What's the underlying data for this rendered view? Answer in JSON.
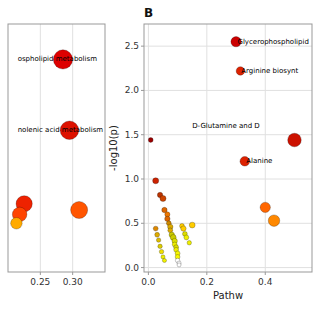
{
  "chart_data": [
    {
      "type": "scatter",
      "x": [
        0.285,
        0.295,
        0.225,
        0.218,
        0.213,
        0.31
      ],
      "values": [
        2.35,
        1.55,
        0.72,
        0.6,
        0.5,
        0.65
      ],
      "sizes": [
        280,
        260,
        200,
        160,
        100,
        220
      ],
      "colors": [
        "#dd0000",
        "#dd1100",
        "#ee2200",
        "#ff4400",
        "#ffaa00",
        "#ff5500"
      ],
      "xlim": [
        0.2,
        0.35
      ],
      "ylim": [
        -0.05,
        2.75
      ],
      "xticks": [
        {
          "value": 0.25,
          "label": "0.25"
        },
        {
          "value": 0.3,
          "label": "0.30"
        }
      ],
      "yticks": [],
      "tick_labels": "x",
      "grid": true,
      "annotations": [
        {
          "x": 0.215,
          "y": 2.35,
          "text": "ospholipid metabolism"
        },
        {
          "x": 0.215,
          "y": 1.55,
          "text": "nolenic acid metabolism"
        }
      ]
    },
    {
      "type": "scatter",
      "title": "B",
      "x_label": "Pathw",
      "y_label": "-log10(p)",
      "x": [
        0.3,
        0.315,
        0.008,
        0.5,
        0.33,
        0.4,
        0.43,
        0.025,
        0.04,
        0.05,
        0.055,
        0.065,
        0.065,
        0.07,
        0.075,
        0.075,
        0.08,
        0.085,
        0.09,
        0.09,
        0.095,
        0.095,
        0.1,
        0.1,
        0.1,
        0.105,
        0.105,
        0.115,
        0.12,
        0.125,
        0.13,
        0.14,
        0.15,
        0.025,
        0.03,
        0.035,
        0.04,
        0.045,
        0.05,
        0.055
      ],
      "values": [
        2.55,
        2.22,
        1.44,
        1.44,
        1.2,
        0.68,
        0.53,
        0.98,
        0.82,
        0.78,
        0.65,
        0.6,
        0.55,
        0.5,
        0.46,
        0.42,
        0.37,
        0.34,
        0.3,
        0.26,
        0.23,
        0.2,
        0.16,
        0.12,
        0.08,
        0.05,
        0.03,
        0.47,
        0.44,
        0.38,
        0.34,
        0.28,
        0.48,
        0.44,
        0.37,
        0.31,
        0.24,
        0.18,
        0.12,
        0.08
      ],
      "sizes": [
        80,
        55,
        18,
        140,
        70,
        80,
        100,
        28,
        22,
        28,
        22,
        20,
        22,
        18,
        22,
        18,
        22,
        26,
        22,
        18,
        18,
        18,
        18,
        18,
        15,
        13,
        12,
        18,
        22,
        18,
        18,
        15,
        26,
        18,
        18,
        15,
        15,
        15,
        13,
        13
      ],
      "colors": [
        "#cc0000",
        "#dd2200",
        "#990000",
        "#cc1100",
        "#dd2200",
        "#ff6600",
        "#ff8800",
        "#cc2200",
        "#bb3300",
        "#cc4400",
        "#dd6600",
        "#ee7700",
        "#dd6600",
        "#cc8800",
        "#ddaa00",
        "#ddaa00",
        "#cccc00",
        "#cccc00",
        "#dddd00",
        "#eeee00",
        "#dddd00",
        "#eeee00",
        "#f5f500",
        "#f8f800",
        "#ffffff",
        "#ffffff",
        "#ffffff",
        "#ffcc00",
        "#ffcc00",
        "#dddd00",
        "#eeee00",
        "#eeee00",
        "#ffcc00",
        "#dd8800",
        "#ddaa00",
        "#ddbb00",
        "#ddcc00",
        "#eedd00",
        "#eeee00",
        "#f0f000"
      ],
      "xlim": [
        -0.015,
        0.56
      ],
      "ylim": [
        -0.05,
        2.75
      ],
      "xticks": [
        {
          "value": 0.0,
          "label": "0.0"
        },
        {
          "value": 0.2,
          "label": "0.2"
        },
        {
          "value": 0.4,
          "label": "0.4"
        }
      ],
      "yticks": [
        {
          "value": 0.0,
          "label": "0.0"
        },
        {
          "value": 0.5,
          "label": "0.5"
        },
        {
          "value": 1.0,
          "label": "1.0"
        },
        {
          "value": 1.5,
          "label": "1.5"
        },
        {
          "value": 2.0,
          "label": "2.0"
        },
        {
          "value": 2.5,
          "label": "2.5"
        }
      ],
      "grid": true,
      "annotations": [
        {
          "x": 0.305,
          "y": 2.55,
          "text": "Glycerophospholipid"
        },
        {
          "x": 0.318,
          "y": 2.22,
          "text": "Arginine biosynt"
        },
        {
          "x": 0.15,
          "y": 1.6,
          "text": "D-Glutamine and D"
        },
        {
          "x": 0.335,
          "y": 1.2,
          "text": "Alanine"
        }
      ]
    }
  ]
}
